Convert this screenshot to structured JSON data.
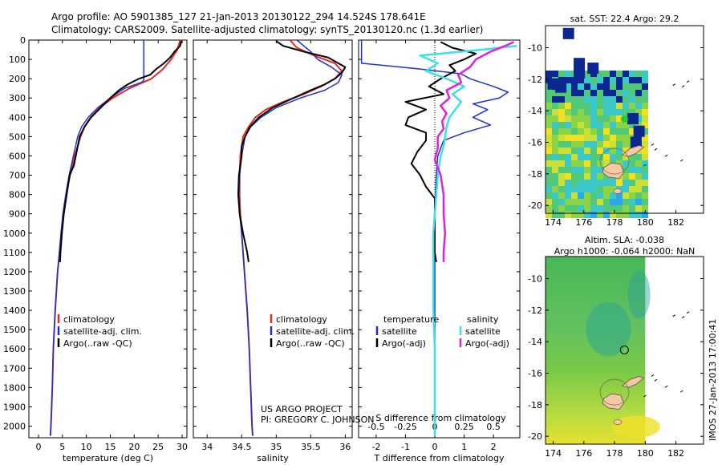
{
  "header": {
    "line1": "Argo profile: AO 5901385_127 21-Jan-2013 20130122_294 14.524S 178.641E",
    "line2": "Climatology: CARS2009. Satellite-adjusted climatology: synTS_20130120.nc (1.3d earlier)"
  },
  "credit": {
    "line1": "US ARGO PROJECT",
    "line2": "PI: GREGORY C. JOHNSON"
  },
  "stamp": "IMOS 27-Jan-2013 17:00:41",
  "colors": {
    "climatology": "#e8281e",
    "satellite": "#1f2fd6",
    "argo": "#000000",
    "sat_salinity": "#3ce0e6",
    "argo_adj_salinity": "#e020e0"
  },
  "chart_data": [
    {
      "type": "line",
      "name": "temperature-profile",
      "xlabel": "temperature (deg C)",
      "ylabel": "",
      "xlim": [
        -2,
        31
      ],
      "ylim": [
        2060,
        0
      ],
      "xticks": [
        0,
        5,
        10,
        15,
        20,
        25,
        30
      ],
      "yticks": [
        0,
        100,
        200,
        300,
        400,
        500,
        600,
        700,
        800,
        900,
        1000,
        1100,
        1200,
        1300,
        1400,
        1500,
        1600,
        1700,
        1800,
        1900,
        2000
      ],
      "legend": [
        "climatology",
        "satellite-adj. clim.",
        "Argo(..raw -QC)"
      ],
      "series": [
        {
          "name": "climatology",
          "color": "#e8281e",
          "width": 2,
          "depth": [
            0,
            50,
            100,
            150,
            200,
            250,
            300,
            350,
            400,
            450,
            500,
            600,
            700,
            800,
            900,
            1000,
            1200,
            1400,
            1600,
            1800,
            2000,
            2050
          ],
          "values": [
            29.6,
            29.0,
            27.7,
            26.0,
            23.6,
            19.0,
            15.5,
            12.8,
            10.9,
            9.6,
            8.8,
            7.6,
            6.6,
            5.8,
            5.2,
            4.8,
            4.0,
            3.5,
            3.1,
            2.9,
            2.6,
            2.5
          ]
        },
        {
          "name": "satellite-adj. clim.",
          "color": "#1f2fd6",
          "width": 1.5,
          "depth": [
            0,
            210,
            220,
            250,
            300,
            350,
            400,
            450,
            500,
            600,
            700,
            800,
            900,
            1000,
            1200,
            1400,
            1600,
            1800,
            2000,
            2050
          ],
          "values": [
            22.0,
            22.0,
            21.4,
            18.0,
            15.0,
            12.4,
            10.4,
            9.0,
            8.2,
            7.3,
            6.4,
            5.7,
            5.1,
            4.7,
            4.0,
            3.5,
            3.1,
            2.9,
            2.6,
            2.5
          ]
        },
        {
          "name": "Argo(..raw -QC)",
          "color": "#000000",
          "width": 2,
          "depth": [
            5,
            30,
            60,
            90,
            120,
            150,
            180,
            200,
            230,
            260,
            300,
            350,
            400,
            450,
            500,
            550,
            600,
            650,
            700,
            800,
            900,
            1000,
            1100,
            1150
          ],
          "values": [
            29.8,
            29.6,
            28.4,
            27.5,
            26.2,
            24.6,
            23.3,
            21.0,
            18.6,
            16.8,
            15.0,
            13.0,
            11.0,
            9.6,
            8.6,
            8.2,
            7.8,
            7.4,
            6.5,
            5.9,
            5.3,
            4.9,
            4.6,
            4.5
          ]
        }
      ]
    },
    {
      "type": "line",
      "name": "salinity-profile",
      "xlabel": "salinity",
      "ylabel": "",
      "xlim": [
        33.8,
        36.1
      ],
      "ylim": [
        2060,
        0
      ],
      "xticks": [
        34,
        34.5,
        35,
        35.5,
        36
      ],
      "legend": [
        "climatology",
        "satellite-adj. clim.",
        "Argo(..raw -QC)"
      ],
      "series": [
        {
          "name": "climatology",
          "color": "#e8281e",
          "width": 2,
          "depth": [
            0,
            40,
            80,
            120,
            160,
            200,
            240,
            280,
            320,
            360,
            400,
            450,
            500,
            600,
            700,
            800,
            900,
            1000,
            1200,
            1400,
            1600,
            1800,
            2000,
            2050
          ],
          "values": [
            35.2,
            35.3,
            35.55,
            35.85,
            35.95,
            35.85,
            35.65,
            35.4,
            35.1,
            34.85,
            34.7,
            34.6,
            34.52,
            34.48,
            34.47,
            34.47,
            34.48,
            34.5,
            34.54,
            34.58,
            34.61,
            34.63,
            34.65,
            34.66
          ]
        },
        {
          "name": "satellite-adj. clim.",
          "color": "#1f2fd6",
          "width": 1.5,
          "depth": [
            0,
            60,
            100,
            140,
            180,
            220,
            260,
            300,
            350,
            400,
            450,
            500,
            600,
            700,
            800,
            900,
            1000,
            1200,
            1400,
            1600,
            1800,
            2000,
            2050
          ],
          "values": [
            35.3,
            35.5,
            35.6,
            35.8,
            35.95,
            35.9,
            35.7,
            35.35,
            35.0,
            34.78,
            34.63,
            34.55,
            34.5,
            34.47,
            34.46,
            34.47,
            34.5,
            34.54,
            34.58,
            34.61,
            34.63,
            34.65,
            34.66
          ]
        },
        {
          "name": "Argo(..raw -QC)",
          "color": "#000000",
          "width": 2,
          "depth": [
            5,
            30,
            60,
            90,
            110,
            140,
            170,
            200,
            230,
            260,
            300,
            350,
            400,
            450,
            500,
            550,
            600,
            650,
            700,
            800,
            900,
            1000,
            1100,
            1150
          ],
          "values": [
            35.0,
            35.1,
            35.4,
            35.75,
            35.85,
            36.0,
            35.95,
            35.85,
            35.7,
            35.5,
            35.25,
            34.95,
            34.75,
            34.62,
            34.55,
            34.5,
            34.5,
            34.48,
            34.46,
            34.45,
            34.47,
            34.52,
            34.58,
            34.6
          ]
        }
      ]
    },
    {
      "type": "line",
      "name": "difference-profile",
      "xlabel": "T difference from climatology",
      "x2label": "S difference from climatology",
      "xlim": [
        -2.6,
        2.9
      ],
      "ylim": [
        2060,
        0
      ],
      "xticks": [
        -2,
        -1,
        0,
        1,
        2
      ],
      "x2ticks": [
        -0.5,
        -0.25,
        0,
        0.25,
        0.5
      ],
      "legend": [
        "temperature",
        "satellite",
        "Argo(-adj)",
        "salinity",
        "satellite",
        "Argo(-adj)"
      ],
      "series": [
        {
          "name": "temperature satellite",
          "color": "#1f2fd6",
          "width": 1.5,
          "depth": [
            0,
            120,
            150,
            175,
            200,
            240,
            270,
            300,
            330,
            360,
            400,
            440,
            480,
            520,
            600,
            700,
            800,
            900,
            1000,
            1100,
            1200,
            1400,
            1600,
            1800,
            2000,
            2050
          ],
          "values": [
            -2.5,
            -2.5,
            -0.5,
            0.9,
            1.2,
            2.0,
            2.5,
            2.2,
            1.3,
            1.8,
            1.3,
            1.9,
            1.0,
            0.3,
            0.1,
            0.05,
            0.02,
            0.0,
            0.0,
            0.0,
            0.0,
            0.0,
            0.0,
            0.0,
            0.0,
            0.0
          ]
        },
        {
          "name": "temperature Argo(-adj)",
          "color": "#000000",
          "width": 2,
          "depth": [
            10,
            40,
            70,
            100,
            130,
            160,
            200,
            240,
            280,
            320,
            360,
            400,
            440,
            480,
            520,
            580,
            640,
            700,
            760,
            820,
            900,
            1000,
            1100,
            1150
          ],
          "values": [
            0.2,
            0.6,
            1.4,
            1.0,
            0.5,
            0.7,
            0.2,
            -0.2,
            0.3,
            -1.0,
            -0.3,
            -0.9,
            -1.0,
            -0.3,
            -0.3,
            -0.6,
            -0.8,
            -0.5,
            -0.3,
            0.0,
            0.0,
            0.0,
            0.0,
            0.05
          ]
        },
        {
          "name": "salinity satellite",
          "color": "#3ce0e6",
          "width": 2.5,
          "depth": [
            30,
            50,
            80,
            120,
            160,
            200,
            240,
            280,
            320,
            360,
            400,
            450,
            500,
            550,
            600,
            700,
            800,
            900,
            1000,
            1100,
            1200,
            1400,
            1600,
            1800,
            2000,
            2050
          ],
          "values": [
            2.8,
            1.6,
            -0.5,
            0.1,
            -0.3,
            0.4,
            1.0,
            0.6,
            0.9,
            0.7,
            0.5,
            0.4,
            0.35,
            0.3,
            0.2,
            0.1,
            0.05,
            0.0,
            -0.05,
            -0.05,
            -0.05,
            -0.05,
            0.0,
            0.0,
            0.0,
            0.0
          ]
        },
        {
          "name": "salinity Argo(-adj)",
          "color": "#e020e0",
          "width": 2.5,
          "depth": [
            10,
            30,
            60,
            100,
            140,
            180,
            220,
            260,
            300,
            340,
            380,
            420,
            460,
            500,
            560,
            620,
            700,
            800,
            900,
            1000,
            1100,
            1150
          ],
          "values": [
            2.7,
            2.4,
            1.9,
            1.4,
            1.2,
            0.8,
            0.9,
            0.4,
            0.5,
            0.2,
            0.4,
            0.25,
            0.3,
            0.1,
            0.1,
            0.0,
            0.2,
            0.3,
            0.3,
            0.35,
            0.3,
            0.3
          ]
        }
      ]
    },
    {
      "type": "heatmap",
      "name": "sst-map",
      "title": "sat. SST: 22.4 Argo: 29.2",
      "xlim": [
        173.5,
        183.8
      ],
      "ylim": [
        -20.5,
        -8.6
      ],
      "xticks": [
        174,
        176,
        178,
        180,
        182
      ],
      "yticks": [
        -10,
        -12,
        -14,
        -16,
        -18,
        -20
      ],
      "argo_position": {
        "lon": 178.641,
        "lat": -14.524
      }
    },
    {
      "type": "heatmap",
      "name": "sla-map",
      "title": "Altim. SLA: -0.038",
      "subtitle": "Argo h1000: -0.064 h2000: NaN",
      "xlim": [
        173.5,
        183.8
      ],
      "ylim": [
        -20.5,
        -8.6
      ],
      "xticks": [
        174,
        176,
        178,
        180,
        182
      ],
      "yticks": [
        -10,
        -12,
        -14,
        -16,
        -18,
        -20
      ],
      "argo_position": {
        "lon": 178.641,
        "lat": -14.524
      }
    }
  ]
}
